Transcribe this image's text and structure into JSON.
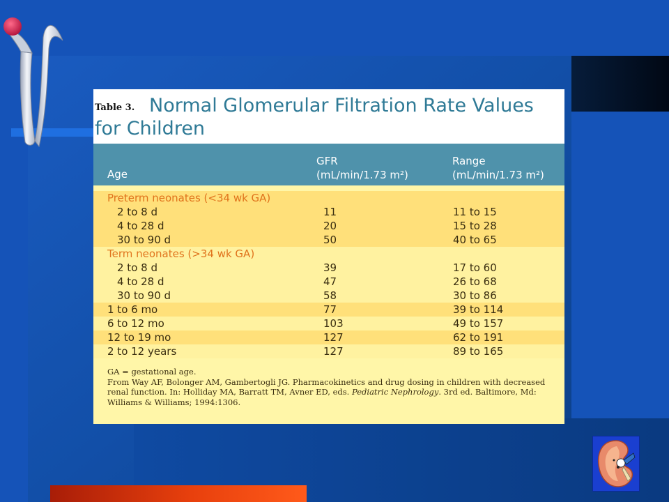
{
  "table": {
    "prefix": "Table 3.",
    "title_line1": "Normal Glomerular Filtration Rate Values",
    "title_line2": "for Children",
    "headers": {
      "age": "Age",
      "gfr_line1": "GFR",
      "gfr_line2": "(mL/min/1.73 m²)",
      "range_line1": "Range",
      "range_line2": "(mL/min/1.73 m²)"
    },
    "rows": [
      {
        "age": "Preterm neonates (<34 wk GA)",
        "gfr": "",
        "range": "",
        "type": "group",
        "band": "dark"
      },
      {
        "age": "2 to 8 d",
        "gfr": "11",
        "range": "11 to 15",
        "type": "indent",
        "band": "dark"
      },
      {
        "age": "4 to 28 d",
        "gfr": "20",
        "range": "15 to 28",
        "type": "indent",
        "band": "dark"
      },
      {
        "age": "30 to 90 d",
        "gfr": "50",
        "range": "40 to 65",
        "type": "indent",
        "band": "dark"
      },
      {
        "age": "Term neonates (>34 wk GA)",
        "gfr": "",
        "range": "",
        "type": "group",
        "band": "light"
      },
      {
        "age": "2 to 8 d",
        "gfr": "39",
        "range": "17 to 60",
        "type": "indent",
        "band": "light"
      },
      {
        "age": "4 to 28 d",
        "gfr": "47",
        "range": "26 to 68",
        "type": "indent",
        "band": "light"
      },
      {
        "age": "30 to 90 d",
        "gfr": "58",
        "range": "30 to 86",
        "type": "indent",
        "band": "light"
      },
      {
        "age": "1 to 6 mo",
        "gfr": "77",
        "range": "39 to 114",
        "type": "plain",
        "band": "dark"
      },
      {
        "age": "6 to 12 mo",
        "gfr": "103",
        "range": "49 to 157",
        "type": "plain",
        "band": "light"
      },
      {
        "age": "12 to 19 mo",
        "gfr": "127",
        "range": "62 to 191",
        "type": "plain",
        "band": "dark"
      },
      {
        "age": "2 to 12 years",
        "gfr": "127",
        "range": "89 to 165",
        "type": "plain",
        "band": "light"
      }
    ],
    "footnote": {
      "line1": "GA = gestational age.",
      "source_pre": "From Way AF, Bolonger AM, Gambertogli JG. Pharmacokinetics and drug dosing in children with decreased renal function. In: Holliday MA, Barratt TM, Avner ED, eds. ",
      "source_italic": "Pediatric Nephrology",
      "source_post": ". 3rd ed. Baltimore, Md: Williams & Williams; 1994:1306."
    }
  },
  "icons": {
    "logo": "ribbon-logo-icon",
    "corner": "kidney-icon"
  },
  "colors": {
    "background": "#1553b8",
    "title_text": "#2f7a96",
    "header_band": "#4f92ab",
    "row_dark": "#ffe07a",
    "row_light": "#fff2a0",
    "group_label": "#e0731c",
    "accent_bar": "#e8400d"
  }
}
